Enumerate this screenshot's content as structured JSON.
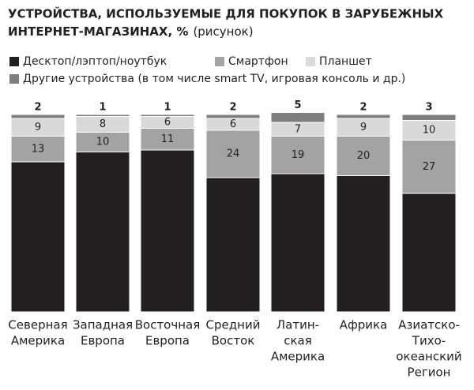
{
  "chart_data": {
    "type": "stacked_bar",
    "title": "УСТРОЙСТВА, ИСПОЛЬЗУЕМЫЕ ДЛЯ ПОКУПОК В ЗАРУБЕЖНЫХ ИНТЕРНЕТ-МАГАЗИНАХ, %",
    "subtitle": "(рисунок)",
    "categories": [
      [
        "Северная",
        "Америка"
      ],
      [
        "Западная",
        "Европа"
      ],
      [
        "Восточная",
        "Европа"
      ],
      [
        "Средний",
        "Восток"
      ],
      [
        "Латин-",
        "ская",
        "Америка"
      ],
      [
        "Африка"
      ],
      [
        "Азиатско-",
        "Тихо-",
        "океанский",
        "Регион"
      ]
    ],
    "ylim": [
      0,
      100
    ],
    "series": [
      {
        "name": "Десктоп/лэптоп/ноутбук",
        "color": "#231f20",
        "values": [
          76,
          81,
          82,
          68,
          70,
          69,
          60
        ]
      },
      {
        "name": "Смартфон",
        "color": "#a3a3a3",
        "values": [
          13,
          10,
          11,
          24,
          19,
          20,
          27
        ]
      },
      {
        "name": "Планшет",
        "color": "#d9d9d9",
        "values": [
          9,
          8,
          6,
          6,
          7,
          9,
          10
        ]
      },
      {
        "name": "Другие устройства (в том числе smart TV, игровая консоль и др.)",
        "color": "#7f7f7f",
        "values": [
          2,
          1,
          1,
          2,
          5,
          2,
          3
        ]
      }
    ]
  }
}
